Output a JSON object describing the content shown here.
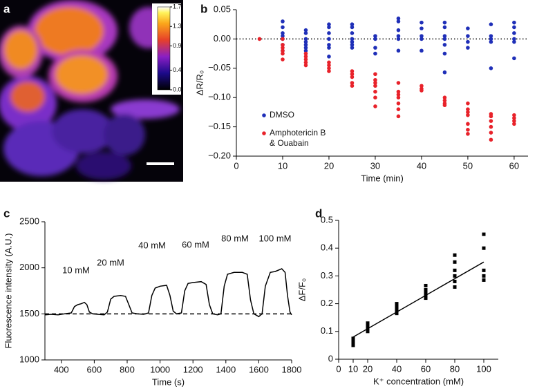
{
  "chart_data": [
    {
      "type": "image",
      "panel_label": "a",
      "colorbar": {
        "lim": [
          0,
          1.7
        ],
        "ticks": [
          1.7,
          1.3,
          0.9,
          0.4,
          {
            "value": 0,
            "label": "0.0"
          }
        ]
      }
    },
    {
      "type": "scatter",
      "panel_label": "b",
      "x_label": "Time (min)",
      "y_label": "ΔR/R₀",
      "xlim": [
        0,
        63
      ],
      "xticks": [
        0,
        10,
        20,
        30,
        40,
        50,
        60
      ],
      "ylim": [
        -0.2,
        0.05
      ],
      "yticks": [
        0.05,
        {
          "value": 0,
          "label": "0.00"
        },
        {
          "value": -0.05,
          "label": "−0.05"
        },
        {
          "value": -0.1,
          "label": "−0.10"
        },
        {
          "value": -0.15,
          "label": "−0.15"
        },
        {
          "value": -0.2,
          "label": "−0.20"
        }
      ],
      "reference_line": 0,
      "series": [
        {
          "name": "DMSO",
          "color": "#1f2fb8",
          "x": [
            10,
            10,
            10,
            10,
            10,
            10,
            10,
            15,
            15,
            15,
            15,
            15,
            15,
            15,
            20,
            20,
            20,
            20,
            20,
            20,
            20,
            25,
            25,
            25,
            25,
            25,
            25,
            25,
            30,
            30,
            30,
            30,
            35,
            35,
            35,
            35,
            35,
            35,
            40,
            40,
            40,
            40,
            40,
            45,
            45,
            45,
            45,
            45,
            45,
            45,
            50,
            50,
            50,
            50,
            55,
            55,
            55,
            55,
            55,
            60,
            60,
            60,
            60,
            60,
            60
          ],
          "values": [
            0.03,
            0.02,
            0.01,
            0.005,
            0.0,
            -0.01,
            -0.02,
            0.015,
            0.01,
            0.0,
            -0.005,
            -0.01,
            -0.015,
            -0.02,
            0.025,
            0.02,
            0.01,
            0.0,
            -0.01,
            -0.015,
            -0.03,
            0.025,
            0.02,
            0.01,
            0.0,
            -0.005,
            -0.01,
            -0.015,
            0.005,
            0.0,
            -0.015,
            -0.025,
            0.035,
            0.03,
            0.015,
            0.005,
            0.0,
            -0.02,
            0.028,
            0.018,
            0.005,
            0.0,
            -0.02,
            0.028,
            0.02,
            0.005,
            0.0,
            -0.01,
            -0.025,
            -0.057,
            0.018,
            0.005,
            -0.005,
            -0.015,
            0.025,
            0.005,
            0.0,
            -0.005,
            -0.05,
            0.028,
            0.02,
            0.01,
            0.0,
            -0.005,
            -0.033
          ]
        },
        {
          "name": "Amphotericin B & Ouabain",
          "color": "#e8222a",
          "x": [
            5,
            10,
            10,
            10,
            10,
            10,
            10,
            15,
            15,
            15,
            15,
            15,
            20,
            20,
            20,
            20,
            25,
            25,
            25,
            25,
            25,
            30,
            30,
            30,
            30,
            30,
            30,
            30,
            35,
            35,
            35,
            35,
            35,
            35,
            35,
            40,
            40,
            40,
            45,
            45,
            45,
            45,
            50,
            50,
            50,
            50,
            50,
            50,
            50,
            55,
            55,
            55,
            55,
            55,
            55,
            60,
            60,
            60,
            60
          ],
          "values": [
            0.0,
            0.0,
            -0.01,
            -0.015,
            -0.02,
            -0.025,
            -0.035,
            -0.025,
            -0.03,
            -0.035,
            -0.04,
            -0.045,
            -0.04,
            -0.045,
            -0.05,
            -0.055,
            -0.055,
            -0.06,
            -0.065,
            -0.075,
            -0.08,
            -0.06,
            -0.07,
            -0.075,
            -0.08,
            -0.09,
            -0.1,
            -0.115,
            -0.075,
            -0.09,
            -0.095,
            -0.1,
            -0.11,
            -0.12,
            -0.132,
            -0.08,
            -0.085,
            -0.088,
            -0.1,
            -0.105,
            -0.11,
            -0.113,
            -0.11,
            -0.12,
            -0.125,
            -0.13,
            -0.145,
            -0.155,
            -0.162,
            -0.128,
            -0.132,
            -0.14,
            -0.15,
            -0.16,
            -0.172,
            -0.13,
            -0.135,
            -0.14,
            -0.145
          ]
        }
      ]
    },
    {
      "type": "line",
      "panel_label": "c",
      "x_label": "Time (s)",
      "y_label": "Fluorescence intensity (A.U.)",
      "xlim": [
        300,
        1800
      ],
      "xticks": [
        400,
        600,
        800,
        1000,
        1200,
        1400,
        1600,
        1800
      ],
      "ylim": [
        1000,
        2500
      ],
      "yticks": [
        1000,
        1500,
        2000,
        2500
      ],
      "reference_line": 1500,
      "color": "#000000",
      "x": [
        300,
        340,
        380,
        420,
        460,
        480,
        500,
        520,
        540,
        555,
        570,
        590,
        620,
        660,
        680,
        700,
        720,
        760,
        790,
        810,
        830,
        860,
        900,
        930,
        950,
        970,
        1000,
        1040,
        1060,
        1080,
        1100,
        1130,
        1150,
        1170,
        1200,
        1250,
        1280,
        1300,
        1320,
        1350,
        1370,
        1390,
        1410,
        1450,
        1500,
        1530,
        1550,
        1570,
        1600,
        1620,
        1640,
        1670,
        1700,
        1740,
        1760,
        1775,
        1790,
        1800
      ],
      "values": [
        1490,
        1495,
        1490,
        1500,
        1510,
        1580,
        1600,
        1610,
        1625,
        1600,
        1520,
        1500,
        1495,
        1490,
        1520,
        1660,
        1690,
        1700,
        1690,
        1600,
        1510,
        1500,
        1495,
        1510,
        1700,
        1780,
        1800,
        1810,
        1700,
        1530,
        1500,
        1510,
        1750,
        1830,
        1840,
        1850,
        1820,
        1600,
        1500,
        1490,
        1500,
        1800,
        1930,
        1950,
        1950,
        1930,
        1650,
        1500,
        1470,
        1500,
        1800,
        1950,
        1960,
        1990,
        1950,
        1700,
        1520,
        1490
      ],
      "annotations": [
        "10 mM",
        "20 mM",
        "40 mM",
        "60 mM",
        "80 mM",
        "100 mM"
      ]
    },
    {
      "type": "scatter",
      "panel_label": "d",
      "x_label": "K⁺ concentration (mM)",
      "y_label": "ΔF/F₀",
      "xlim": [
        0,
        110
      ],
      "xticks": [
        0,
        10,
        20,
        40,
        60,
        80,
        100
      ],
      "ylim": [
        0,
        0.5
      ],
      "yticks": [
        0,
        0.1,
        0.2,
        0.3,
        0.4,
        0.5
      ],
      "marker": "square",
      "series": [
        {
          "color": "#000000",
          "x": [
            10,
            10,
            10,
            10,
            20,
            20,
            20,
            20,
            20,
            40,
            40,
            40,
            40,
            40,
            60,
            60,
            60,
            60,
            60,
            80,
            80,
            80,
            80,
            80,
            80,
            100,
            100,
            100,
            100,
            100
          ],
          "values": [
            0.05,
            0.06,
            0.07,
            0.075,
            0.1,
            0.105,
            0.11,
            0.12,
            0.13,
            0.165,
            0.17,
            0.18,
            0.19,
            0.2,
            0.22,
            0.23,
            0.24,
            0.25,
            0.265,
            0.26,
            0.28,
            0.3,
            0.32,
            0.35,
            0.375,
            0.285,
            0.3,
            0.32,
            0.4,
            0.45
          ]
        }
      ],
      "fit": {
        "x": [
          10,
          100
        ],
        "values": [
          0.08,
          0.35
        ]
      }
    }
  ]
}
